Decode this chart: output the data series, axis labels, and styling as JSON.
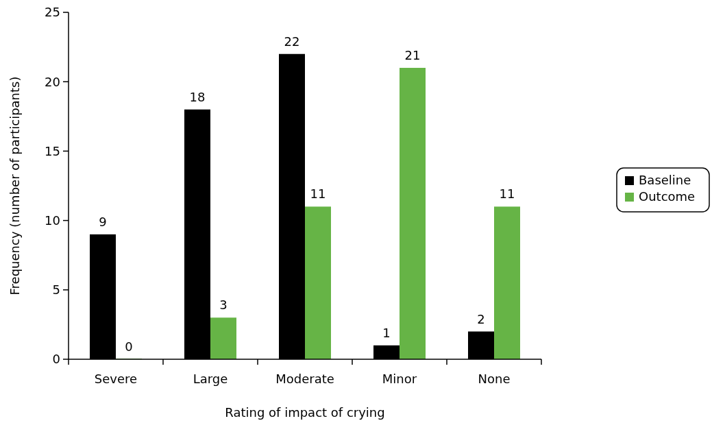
{
  "chart_data": {
    "type": "bar",
    "xlabel": "Rating of impact of crying",
    "ylabel": "Frequency (number of participants)",
    "categories": [
      "Severe",
      "Large",
      "Moderate",
      "Minor",
      "None"
    ],
    "series": [
      {
        "name": "Baseline",
        "color": "#000000",
        "values": [
          9,
          18,
          22,
          1,
          2
        ]
      },
      {
        "name": "Outcome",
        "color": "#66b446",
        "values": [
          0,
          3,
          11,
          21,
          11
        ]
      }
    ],
    "ylim": [
      0,
      25
    ],
    "yticks": [
      0,
      5,
      10,
      15,
      20,
      25
    ],
    "grid": false,
    "legend": "right",
    "data_labels": true
  }
}
